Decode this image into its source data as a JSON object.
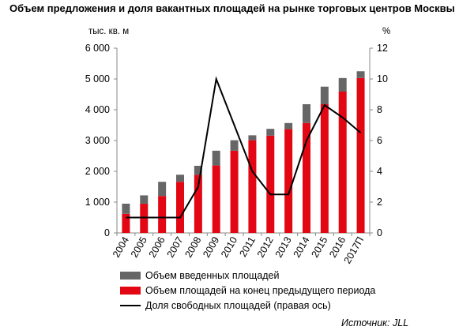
{
  "title": "Объем предложения и доля вакантных площадей на рынке торговых центров Москвы",
  "source": "Источник: JLL",
  "colors": {
    "new": "#666666",
    "stock": "#e30613",
    "line": "#000000",
    "axis": "#888888"
  },
  "chart_data": {
    "type": "bar",
    "categories": [
      "2004",
      "2005",
      "2006",
      "2007",
      "2008",
      "2009",
      "2010",
      "2011",
      "2012",
      "2013",
      "2014",
      "2015",
      "2016",
      "2017П"
    ],
    "series": [
      {
        "name": "Объем площадей на конец предыдущего периода",
        "kind": "bar-stack-bottom",
        "values": [
          620,
          950,
          1200,
          1660,
          1890,
          2190,
          2670,
          3010,
          3160,
          3370,
          3570,
          4180,
          4590,
          5030
        ]
      },
      {
        "name": "Объем введенных площадей",
        "kind": "bar-stack-top",
        "values": [
          330,
          270,
          460,
          230,
          290,
          480,
          340,
          160,
          220,
          200,
          610,
          570,
          440,
          220
        ]
      },
      {
        "name": "Доля свободных площадей (правая ось)",
        "kind": "line",
        "axis": "right",
        "values": [
          1.0,
          1.0,
          1.0,
          1.0,
          3.0,
          10.0,
          7.0,
          4.0,
          2.5,
          2.5,
          6.0,
          8.3,
          7.5,
          6.5
        ]
      }
    ],
    "ylabel": "тыс. кв. м",
    "ylabel_right": "%",
    "ylim": [
      0,
      6000
    ],
    "ylim_right": [
      0,
      12
    ],
    "yticks": [
      "0",
      "1 000",
      "2 000",
      "3 000",
      "4 000",
      "5 000",
      "6 000"
    ],
    "yticks_right": [
      "0",
      "2",
      "4",
      "6",
      "8",
      "10",
      "12"
    ],
    "grid": false,
    "legend_position": "bottom"
  }
}
